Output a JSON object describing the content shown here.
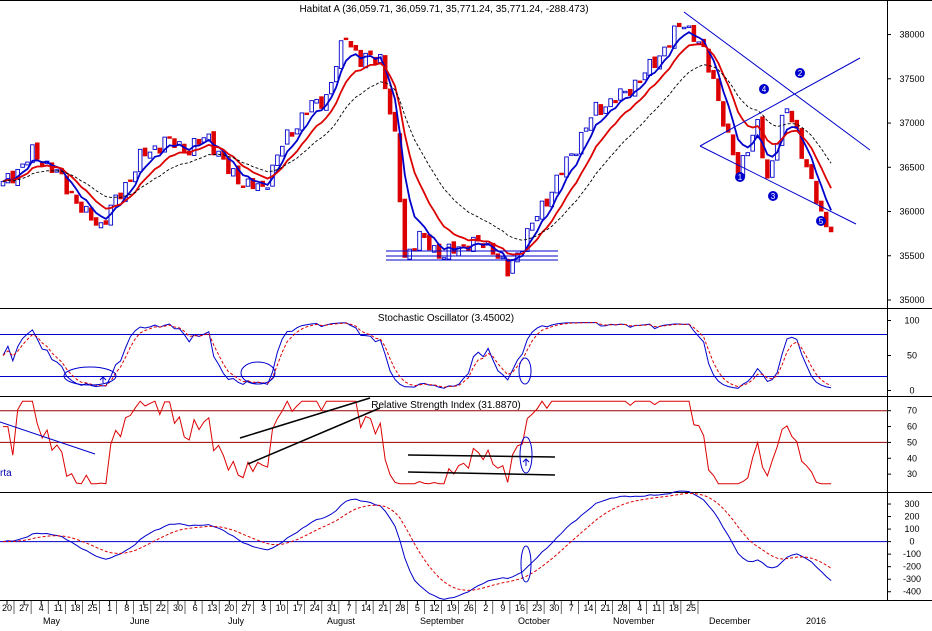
{
  "chart_data": [
    {
      "type": "candlestick",
      "title": "Habitat A (36,059.71, 36,059.71, 35,771.24, 35,771.24, -288.473)",
      "ylim": [
        35000,
        38300
      ],
      "y_ticks": [
        35000,
        35500,
        36000,
        36500,
        37000,
        37500,
        38000
      ],
      "up_color": "#0000cc",
      "down_color": "#dd0000",
      "series": [
        {
          "name": "MA fast",
          "color": "#0000cc",
          "style": "solid"
        },
        {
          "name": "MA medium",
          "color": "#dd0000",
          "style": "solid"
        },
        {
          "name": "MA slow",
          "color": "#000000",
          "style": "dashed"
        }
      ],
      "annotations": [
        "1",
        "2",
        "3",
        "4",
        "5"
      ],
      "grid": false
    },
    {
      "type": "line",
      "title": "Stochastic Oscillator (3.45002)",
      "ylim": [
        -5,
        115
      ],
      "y_ticks": [
        0,
        50,
        100
      ],
      "reference_lines": [
        20,
        80
      ],
      "series": [
        {
          "name": "%K",
          "color": "#0000cc",
          "style": "solid"
        },
        {
          "name": "%D",
          "color": "#dd0000",
          "style": "dashed"
        }
      ]
    },
    {
      "type": "line",
      "title": "Relative Strength Index (31.8870)",
      "ylim": [
        20,
        78
      ],
      "y_ticks": [
        30,
        40,
        50,
        60,
        70
      ],
      "reference_lines": [
        50,
        70
      ],
      "left_label": "rta",
      "series": [
        {
          "name": "RSI",
          "color": "#dd0000",
          "style": "solid"
        }
      ]
    },
    {
      "type": "line",
      "title": "",
      "ylim": [
        -450,
        380
      ],
      "y_ticks": [
        300,
        200,
        100,
        0,
        -100,
        -200,
        -300,
        -400
      ],
      "reference_lines": [
        0
      ],
      "series": [
        {
          "name": "MACD",
          "color": "#0000cc",
          "style": "solid"
        },
        {
          "name": "Signal",
          "color": "#dd0000",
          "style": "dashed"
        }
      ]
    }
  ],
  "x_axis": {
    "day_ticks": [
      "20",
      "27",
      "4",
      "11",
      "18",
      "25",
      "1",
      "8",
      "15",
      "22",
      "30",
      "6",
      "13",
      "20",
      "27",
      "3",
      "10",
      "17",
      "24",
      "31",
      "7",
      "14",
      "21",
      "28",
      "5",
      "12",
      "19",
      "26",
      "2",
      "9",
      "16",
      "23",
      "30",
      "7",
      "14",
      "21",
      "28",
      "4",
      "11",
      "18",
      "25"
    ],
    "months": [
      "May",
      "June",
      "July",
      "August",
      "September",
      "October",
      "November",
      "December",
      "2016"
    ]
  }
}
